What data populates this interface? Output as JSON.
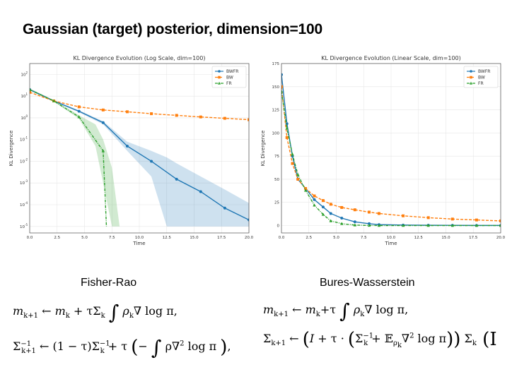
{
  "slide_title": "Gaussian (target) posterior, dimension=100",
  "chart_data": [
    {
      "type": "line",
      "title": "KL Divergence Evolution (Log Scale, dim=100)",
      "xlabel": "Time",
      "ylabel": "KL Divergence",
      "yscale": "log",
      "xlim": [
        0,
        20
      ],
      "ylim_log10": [
        -5.3,
        2.5
      ],
      "xticks": [
        "0.0",
        "2.5",
        "5.0",
        "7.5",
        "10.0",
        "12.5",
        "15.0",
        "17.5",
        "20.0"
      ],
      "yticks": [
        "10^2",
        "10^1",
        "10^0",
        "10^-1",
        "10^-2",
        "10^-3",
        "10^-4",
        "10^-5"
      ],
      "grid": true,
      "legend_position": "top-right",
      "series": [
        {
          "name": "BWFR",
          "color": "#1f77b4",
          "marker": "circle",
          "x": [
            0,
            2.2,
            4.5,
            6.7,
            8.9,
            11.1,
            13.4,
            15.6,
            17.8,
            20
          ],
          "y": [
            20,
            6,
            2,
            0.6,
            0.05,
            0.01,
            0.0015,
            0.0004,
            7e-05,
            2e-05
          ],
          "band": {
            "x": [
              0,
              2.2,
              4.5,
              6.7,
              8.9,
              11.1,
              12.5,
              13.4,
              15.6,
              17.8,
              20
            ],
            "lower": [
              18,
              5.5,
              1.8,
              0.5,
              0.03,
              0.002,
              1e-05,
              1e-05,
              1e-05,
              1e-05,
              1e-05
            ],
            "upper": [
              22,
              6.5,
              2.2,
              0.7,
              0.08,
              0.03,
              0.015,
              0.008,
              0.002,
              0.0005,
              0.00012
            ]
          }
        },
        {
          "name": "BW",
          "color": "#ff7f0e",
          "marker": "square",
          "x": [
            0,
            2.2,
            4.5,
            6.7,
            8.9,
            11.1,
            13.4,
            15.6,
            17.8,
            20
          ],
          "y": [
            15,
            6,
            3.2,
            2.3,
            1.9,
            1.55,
            1.3,
            1.1,
            0.95,
            0.82
          ]
        },
        {
          "name": "FR",
          "color": "#2ca02c",
          "marker": "triangle",
          "x": [
            0,
            2.2,
            4.5,
            6.7,
            7.0
          ],
          "y": [
            20,
            6,
            1.1,
            0.03,
            1e-05
          ],
          "band": {
            "x": [
              0,
              2.2,
              4.5,
              6.0,
              6.7,
              7.5,
              8.2
            ],
            "lower": [
              18,
              5.5,
              0.9,
              0.05,
              0.001,
              1e-05,
              1e-05
            ],
            "upper": [
              22,
              6.5,
              1.3,
              0.5,
              0.1,
              0.005,
              1e-05
            ]
          }
        }
      ]
    },
    {
      "type": "line",
      "title": "KL Divergence Evolution (Linear Scale, dim=100)",
      "xlabel": "Time",
      "ylabel": "KL Divergence",
      "xlim": [
        0,
        20
      ],
      "ylim": [
        -8,
        175
      ],
      "xticks": [
        "0.0",
        "2.5",
        "5.0",
        "7.5",
        "10.0",
        "12.5",
        "15.0",
        "17.5",
        "20.0"
      ],
      "yticks": [
        "0",
        "25",
        "50",
        "75",
        "100",
        "125",
        "150",
        "175"
      ],
      "grid": true,
      "legend_position": "top-right",
      "series": [
        {
          "name": "BWFR",
          "color": "#1f77b4",
          "marker": "circle",
          "x": [
            0,
            0.5,
            1,
            1.5,
            2.2,
            3,
            3.8,
            4.5,
            5.5,
            6.7,
            8,
            8.9,
            11.1,
            13.4,
            15.6,
            17.8,
            20
          ],
          "y": [
            163,
            110,
            75,
            50,
            40,
            28,
            20,
            13,
            8,
            4,
            2,
            1,
            0.5,
            0.3,
            0.2,
            0.1,
            0.1
          ]
        },
        {
          "name": "BW",
          "color": "#ff7f0e",
          "marker": "square",
          "x": [
            0,
            0.5,
            1,
            1.5,
            2.2,
            3,
            3.8,
            4.5,
            5.5,
            6.7,
            8,
            8.9,
            11.1,
            13.4,
            15.6,
            17.8,
            20
          ],
          "y": [
            150,
            95,
            67,
            50,
            40,
            32,
            27,
            23,
            19.5,
            17,
            14.5,
            13,
            10.5,
            8.5,
            7,
            6,
            5
          ]
        },
        {
          "name": "FR",
          "color": "#2ca02c",
          "marker": "triangle",
          "x": [
            0,
            0.5,
            1,
            1.5,
            2.2,
            3,
            3.8,
            4.5,
            5.5,
            6.7,
            8,
            8.9,
            11.1,
            13.4,
            15.6,
            17.8,
            20
          ],
          "y": [
            145,
            105,
            77,
            55,
            38,
            22,
            12,
            5,
            2,
            0.5,
            0.1,
            0,
            0,
            0,
            0,
            0,
            0
          ]
        }
      ]
    }
  ],
  "sections": {
    "fisher_rao": {
      "title": "Fisher-Rao",
      "eq1_lhs": "m",
      "eq1_lhs_sub": "k+1",
      "eq1_arrow": "←",
      "eq1_rhs_a": "m",
      "eq1_rhs_a_sub": "k",
      "eq1_plus": "+ τΣ",
      "eq1_plus_sub": "k",
      "eq1_integral": "∫",
      "eq1_rho": "ρ",
      "eq1_rho_sub": "k",
      "eq1_tail": "∇ log π,",
      "eq2_lhs": "Σ",
      "eq2_lhs_sub": "k+1",
      "eq2_lhs_sup": "−1",
      "eq2_arrow": "←",
      "eq2_rhs_a": "(1 − τ)Σ",
      "eq2_rhs_a_sub": "k",
      "eq2_rhs_a_sup": "−1",
      "eq2_plus": "+ τ",
      "eq2_paren_open": "(",
      "eq2_minus": "−",
      "eq2_integral": "∫",
      "eq2_body": "ρ∇",
      "eq2_body_sup": "2",
      "eq2_tail": " log π",
      "eq2_paren_close": ")",
      "eq2_end": ","
    },
    "bures_wasserstein": {
      "title": "Bures-Wasserstein",
      "eq1_lhs": "m",
      "eq1_lhs_sub": "k+1",
      "eq1_arrow": "←",
      "eq1_rhs_a": "m",
      "eq1_rhs_a_sub": "k",
      "eq1_plus": "+τ",
      "eq1_integral": "∫",
      "eq1_rho": "ρ",
      "eq1_rho_sub": "k",
      "eq1_tail": "∇ log π,",
      "eq2_lhs": "Σ",
      "eq2_lhs_sub": "k+1",
      "eq2_arrow": "←",
      "eq2_paren_open": "(",
      "eq2_I": "I",
      "eq2_mid": " + τ · ",
      "eq2_inner_open": "(",
      "eq2_sigma": "Σ",
      "eq2_sigma_sub": "k",
      "eq2_sigma_sup": "−1",
      "eq2_plus_E": " + 𝔼",
      "eq2_E_sub": "ρ",
      "eq2_E_sub2": "k",
      "eq2_hess": "∇",
      "eq2_hess_sup": "2",
      "eq2_log": " log π",
      "eq2_inner_close": ")",
      "eq2_paren_close": ")",
      "eq2_sigma2": " Σ",
      "eq2_sigma2_sub": "k",
      "eq2_trail": " (I"
    }
  }
}
